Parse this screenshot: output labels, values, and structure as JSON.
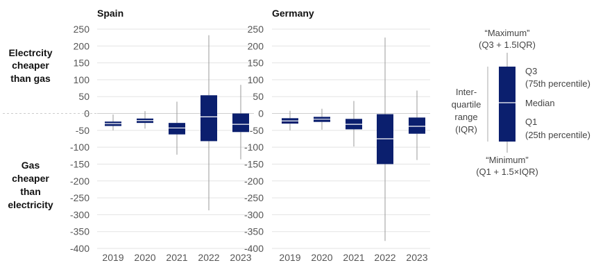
{
  "chart_data": {
    "type": "box",
    "ylim": [
      -400,
      250
    ],
    "y_ticks": [
      250,
      200,
      150,
      100,
      50,
      0,
      -50,
      -100,
      -150,
      -200,
      -250,
      -300,
      -350,
      -400
    ],
    "categories": [
      "2019",
      "2020",
      "2021",
      "2022",
      "2023"
    ],
    "grid": true,
    "row_labels": {
      "positive": [
        "Electrcity",
        "cheaper",
        "than gas"
      ],
      "negative": [
        "Gas",
        "cheaper",
        "than",
        "electricity"
      ]
    },
    "panels": [
      {
        "title": "Spain",
        "boxes": [
          {
            "category": "2019",
            "min": -50,
            "q1": -37,
            "median": -30,
            "q3": -24,
            "max": -3
          },
          {
            "category": "2020",
            "min": -45,
            "q1": -28,
            "median": -21,
            "q3": -15,
            "max": 7
          },
          {
            "category": "2021",
            "min": -122,
            "q1": -62,
            "median": -43,
            "q3": -28,
            "max": 35
          },
          {
            "category": "2022",
            "min": -287,
            "q1": -82,
            "median": -10,
            "q3": 54,
            "max": 232
          },
          {
            "category": "2023",
            "min": -136,
            "q1": -55,
            "median": -32,
            "q3": 0,
            "max": 85
          }
        ]
      },
      {
        "title": "Germany",
        "boxes": [
          {
            "category": "2019",
            "min": -50,
            "q1": -30,
            "median": -22,
            "q3": -14,
            "max": 8
          },
          {
            "category": "2020",
            "min": -48,
            "q1": -25,
            "median": -17,
            "q3": -10,
            "max": 14
          },
          {
            "category": "2021",
            "min": -98,
            "q1": -47,
            "median": -32,
            "q3": -16,
            "max": 37
          },
          {
            "category": "2022",
            "min": -378,
            "q1": -150,
            "median": -75,
            "q3": -2,
            "max": 225
          },
          {
            "category": "2023",
            "min": -138,
            "q1": -60,
            "median": -38,
            "q3": -12,
            "max": 68
          }
        ]
      }
    ],
    "legend": {
      "maximum": [
        "“Maximum”",
        "(Q3 + 1.5IQR)"
      ],
      "q3": [
        "Q3",
        "(75th percentile)"
      ],
      "median": "Median",
      "q1": [
        "Q1",
        "(25th percentile)"
      ],
      "iqr": [
        "Inter-",
        "quartile",
        "range",
        "(IQR)"
      ],
      "minimum": [
        "“Minimum”",
        "(Q1 + 1.5×IQR)"
      ]
    },
    "colors": {
      "box": "#0b1f6e",
      "whisker": "#999999",
      "grid": "#e3e3e3",
      "zero_dashed": "#cccccc",
      "median_line": "#ffffff"
    }
  }
}
